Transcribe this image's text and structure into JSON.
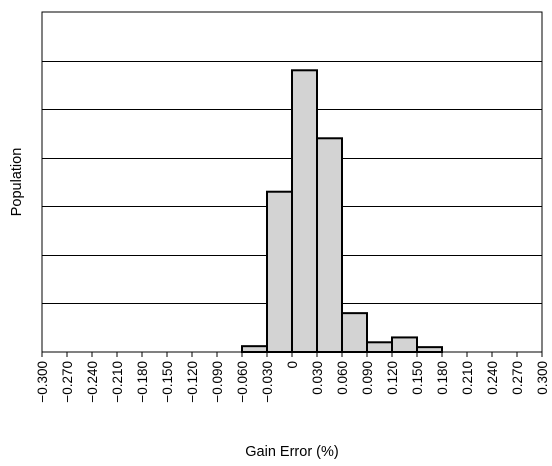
{
  "chart_data": {
    "type": "bar",
    "title": "",
    "xlabel": "Gain Error (%)",
    "ylabel": "Population",
    "x_tick_labels": [
      "−0.300",
      "−0.270",
      "−0.240",
      "−0.210",
      "−0.180",
      "−0.150",
      "−0.120",
      "−0.090",
      "−0.060",
      "−0.030",
      "0",
      "0.030",
      "0.060",
      "0.090",
      "0.120",
      "0.150",
      "0.180",
      "0.210",
      "0.240",
      "0.270",
      "0.300"
    ],
    "bins": [
      {
        "x0": -0.3,
        "x1": -0.27,
        "value": 0
      },
      {
        "x0": -0.27,
        "x1": -0.24,
        "value": 0
      },
      {
        "x0": -0.24,
        "x1": -0.21,
        "value": 0
      },
      {
        "x0": -0.21,
        "x1": -0.18,
        "value": 0
      },
      {
        "x0": -0.18,
        "x1": -0.15,
        "value": 0
      },
      {
        "x0": -0.15,
        "x1": -0.12,
        "value": 0
      },
      {
        "x0": -0.12,
        "x1": -0.09,
        "value": 0
      },
      {
        "x0": -0.09,
        "x1": -0.06,
        "value": 0
      },
      {
        "x0": -0.06,
        "x1": -0.03,
        "value": 0.12
      },
      {
        "x0": -0.03,
        "x1": 0.0,
        "value": 3.3
      },
      {
        "x0": 0.0,
        "x1": 0.03,
        "value": 5.8
      },
      {
        "x0": 0.03,
        "x1": 0.06,
        "value": 4.4
      },
      {
        "x0": 0.06,
        "x1": 0.09,
        "value": 0.8
      },
      {
        "x0": 0.09,
        "x1": 0.12,
        "value": 0.2
      },
      {
        "x0": 0.12,
        "x1": 0.15,
        "value": 0.3
      },
      {
        "x0": 0.15,
        "x1": 0.18,
        "value": 0.1
      },
      {
        "x0": 0.18,
        "x1": 0.21,
        "value": 0
      },
      {
        "x0": 0.21,
        "x1": 0.24,
        "value": 0
      },
      {
        "x0": 0.24,
        "x1": 0.27,
        "value": 0
      },
      {
        "x0": 0.27,
        "x1": 0.3,
        "value": 0
      }
    ],
    "xlim": [
      -0.3,
      0.3
    ],
    "ylim": [
      0,
      7
    ],
    "y_gridlines": [
      1,
      2,
      3,
      4,
      5,
      6
    ],
    "grid": "horizontal",
    "y_tick_labels_shown": false,
    "legend": "none",
    "colors": {
      "bar_fill": "#d3d3d3",
      "bar_stroke": "#000000",
      "grid": "#000000"
    }
  }
}
